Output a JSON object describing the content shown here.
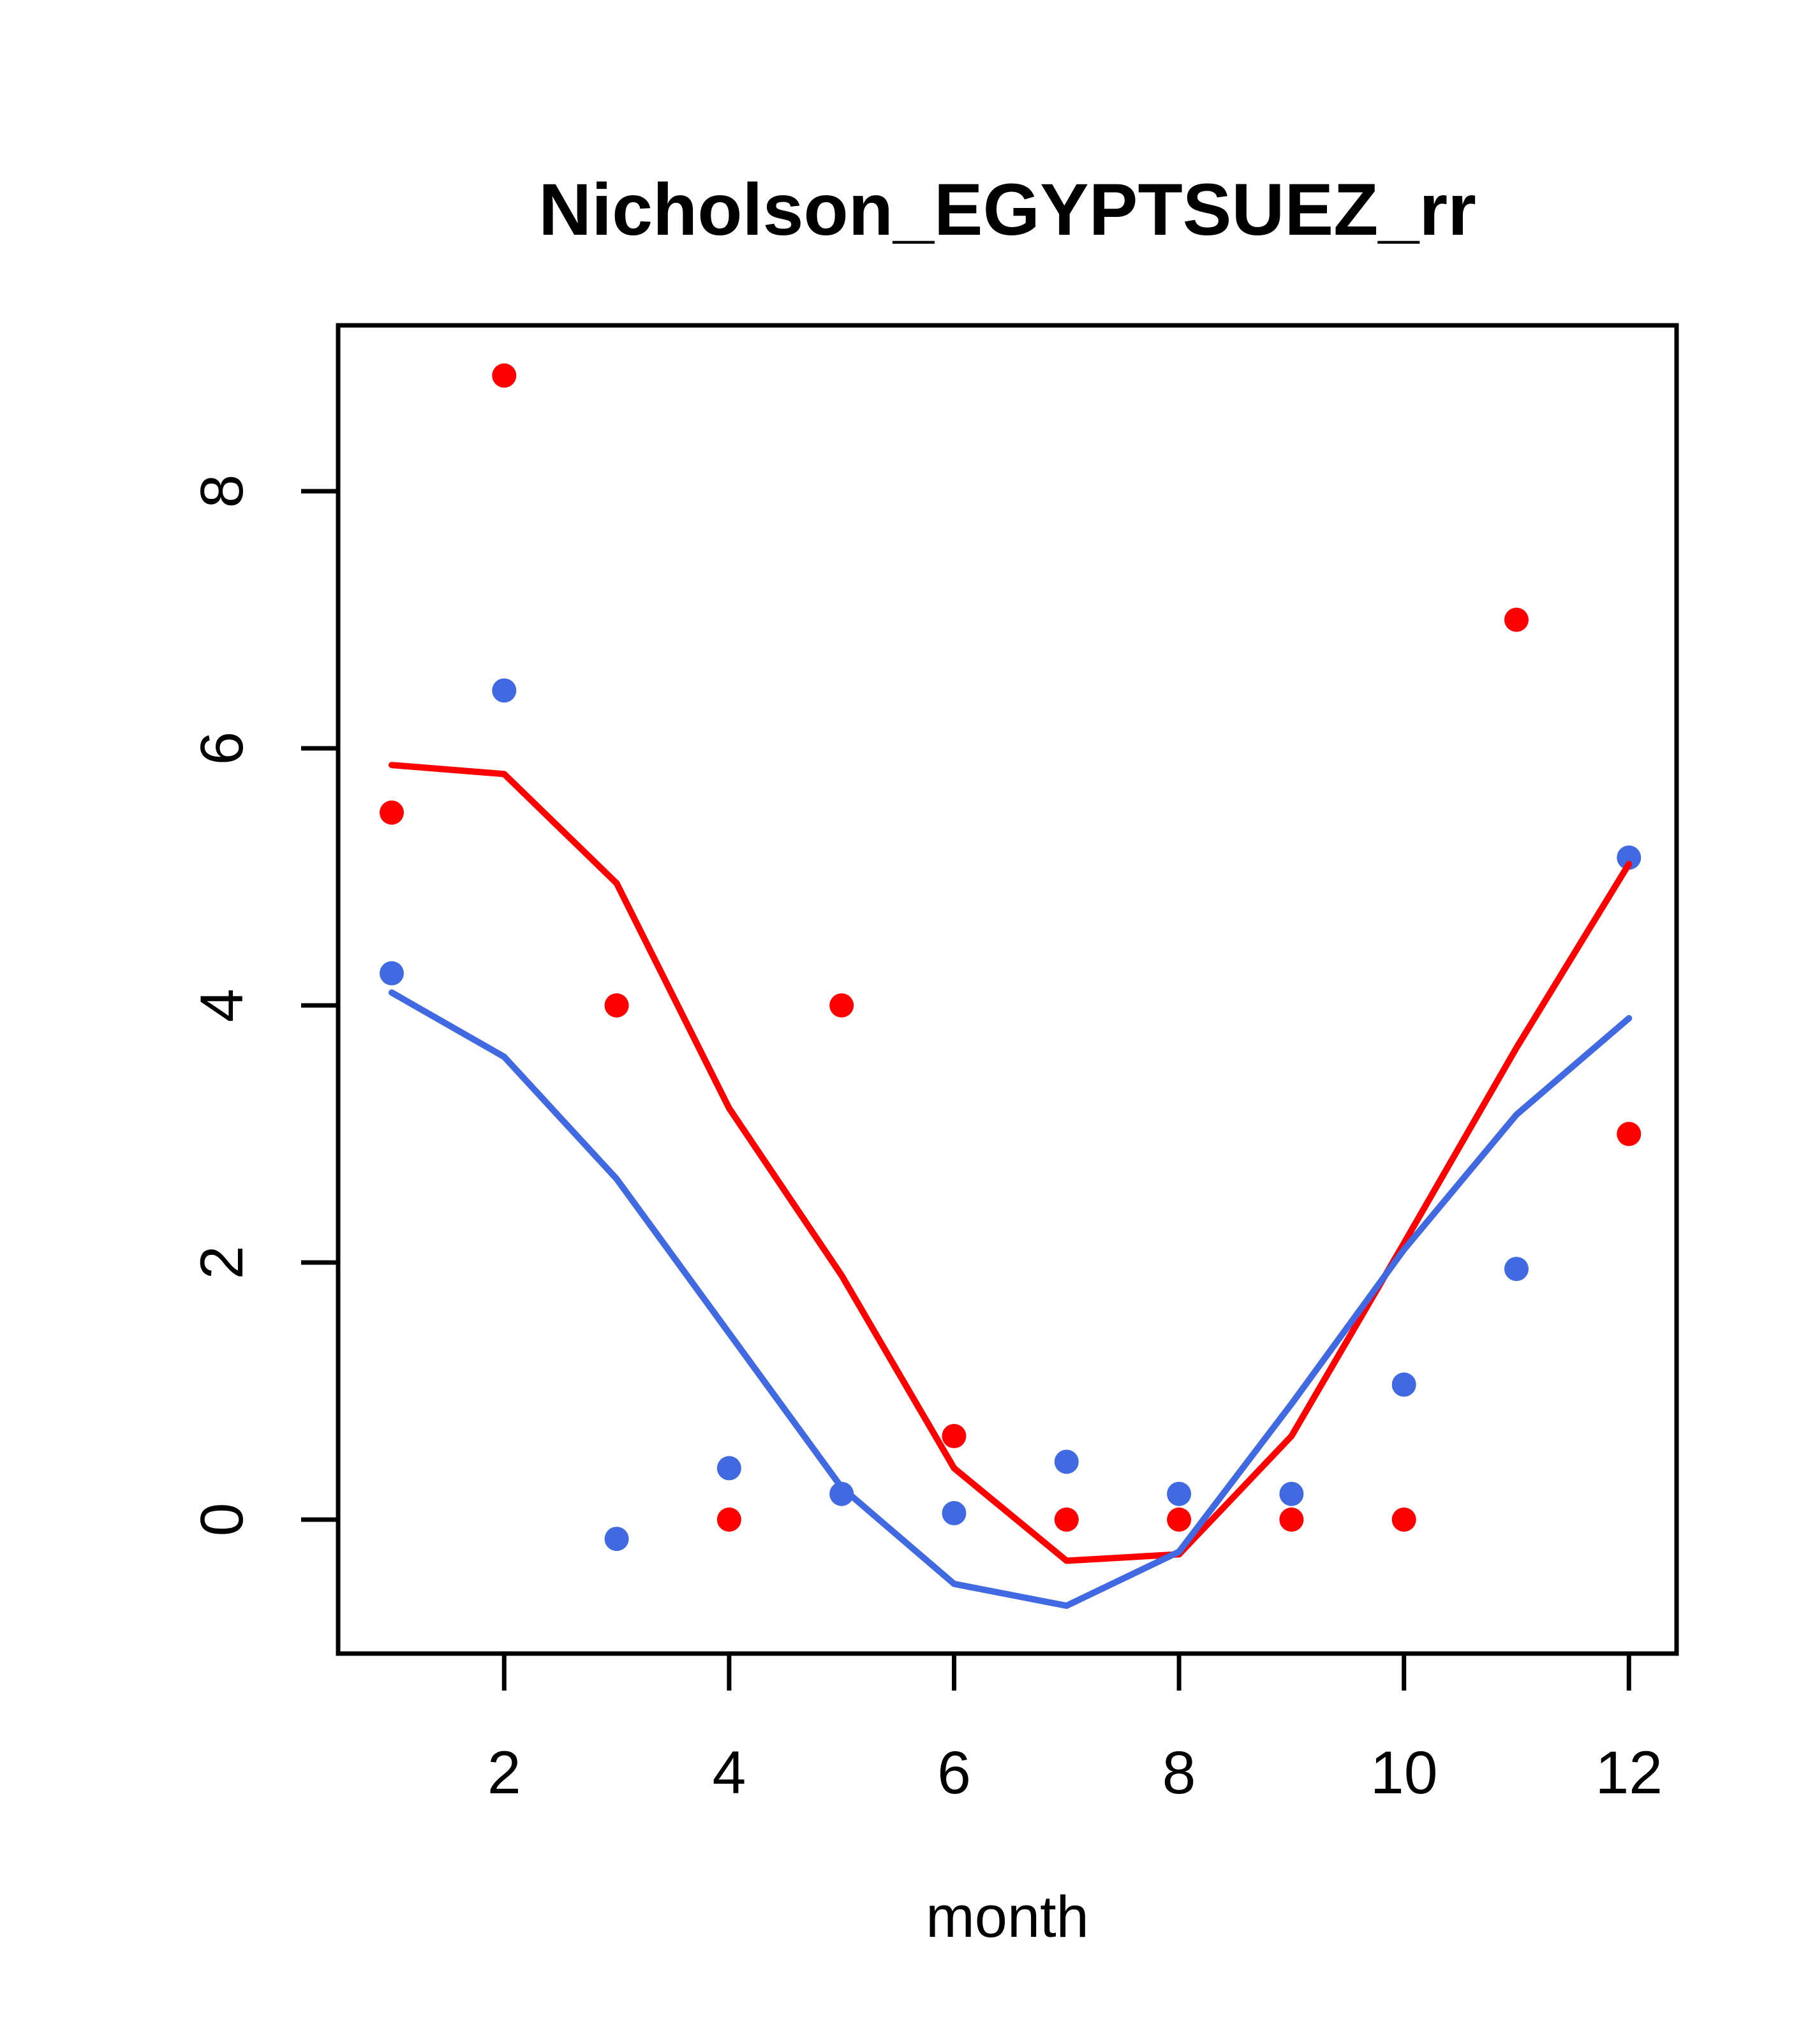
{
  "chart_data": {
    "type": "line",
    "title": "Nicholson_EGYPTSUEZ_rr",
    "xlabel": "month",
    "ylabel": "",
    "x": [
      1,
      2,
      3,
      4,
      5,
      6,
      7,
      8,
      9,
      10,
      11,
      12
    ],
    "xticks": [
      2,
      4,
      6,
      8,
      10,
      12
    ],
    "yticks": [
      0,
      2,
      4,
      6,
      8
    ],
    "xlim": [
      0.52,
      12.43
    ],
    "ylim": [
      -1.05,
      9.29
    ],
    "grid": false,
    "legend": "none",
    "colors": {
      "red": "#FF0000",
      "blue": "#4169E1",
      "axis": "#000000",
      "background": "#FFFFFF"
    },
    "series": [
      {
        "name": "red-points",
        "kind": "scatter",
        "color": "#FF0000",
        "values": [
          5.5,
          8.9,
          4.0,
          0.0,
          4.0,
          0.65,
          0.0,
          0.0,
          0.0,
          0.0,
          7.0,
          3.0
        ]
      },
      {
        "name": "blue-points",
        "kind": "scatter",
        "color": "#4169E1",
        "values": [
          4.25,
          6.45,
          -0.15,
          0.4,
          0.2,
          0.05,
          0.45,
          0.2,
          0.2,
          1.05,
          1.95,
          5.15
        ]
      },
      {
        "name": "red-line",
        "kind": "line",
        "color": "#FF0000",
        "values": [
          5.87,
          5.8,
          4.95,
          3.2,
          1.9,
          0.4,
          -0.32,
          -0.27,
          0.65,
          2.15,
          3.67,
          5.1
        ]
      },
      {
        "name": "blue-line",
        "kind": "line",
        "color": "#4169E1",
        "values": [
          4.1,
          3.6,
          2.65,
          1.45,
          0.25,
          -0.5,
          -0.67,
          -0.25,
          0.9,
          2.1,
          3.15,
          3.9
        ]
      }
    ]
  }
}
